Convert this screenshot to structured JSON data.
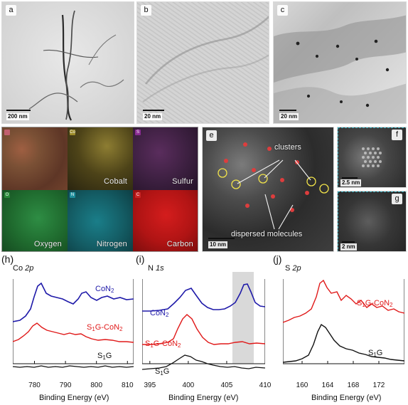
{
  "figure": {
    "panels": {
      "a": {
        "letter": "a",
        "scale_label": "200 nm"
      },
      "b": {
        "letter": "b",
        "scale_label": "20 nm"
      },
      "c": {
        "letter": "c",
        "scale_label": "20 nm"
      },
      "d": {
        "letter": "d",
        "maps": [
          {
            "label": "",
            "badge": "",
            "color": "#7a5035"
          },
          {
            "label": "Cobalt",
            "badge": "Co",
            "color": "#918331"
          },
          {
            "label": "Sulfur",
            "badge": "S",
            "color": "#3b1f3f"
          },
          {
            "label": "Oxygen",
            "badge": "O",
            "color": "#1f6a2e"
          },
          {
            "label": "Nitrogen",
            "badge": "N",
            "color": "#145d65"
          },
          {
            "label": "Carbon",
            "badge": "C",
            "color": "#b01414"
          }
        ]
      },
      "e": {
        "letter": "e",
        "scale_label": "10 nm",
        "annotations": {
          "clusters": "clusters",
          "dispersed": "dispersed molecules"
        }
      },
      "f": {
        "letter": "f",
        "scale_label": "2.5 nm"
      },
      "g": {
        "letter": "g",
        "scale_label": "2 nm"
      }
    }
  },
  "chart_data": [
    {
      "type": "line",
      "panel": "(h)",
      "title_main": "Co",
      "title_sub": "2p",
      "xlabel": "Binding Energy (eV)",
      "xlim": [
        773,
        812
      ],
      "xticks": [
        "780",
        "790",
        "800",
        "810"
      ],
      "series": [
        {
          "name": "CoN",
          "name_sub": "2",
          "color": "#1f1aa9"
        },
        {
          "name": "S",
          "name_sub": "1",
          "name_tail": "G-CoN",
          "name_sub2": "2",
          "color": "#e01919"
        },
        {
          "name": "S",
          "name_sub": "1",
          "name_tail": "G",
          "color": "#111111"
        }
      ]
    },
    {
      "type": "line",
      "panel": "(i)",
      "title_main": "N",
      "title_sub": "1s",
      "xlabel": "Binding Energy (eV)",
      "xlim": [
        394,
        410
      ],
      "xticks": [
        "395",
        "400",
        "405",
        "410"
      ],
      "highlight_range": [
        405.5,
        408.5
      ],
      "series": [
        {
          "name": "CoN",
          "name_sub": "2",
          "color": "#1f1aa9"
        },
        {
          "name": "S",
          "name_sub": "1",
          "name_tail": "G-CoN",
          "name_sub2": "2",
          "color": "#e01919"
        },
        {
          "name": "S",
          "name_sub": "1",
          "name_tail": "G",
          "color": "#111111"
        }
      ]
    },
    {
      "type": "line",
      "panel": "(j)",
      "title_main": "S",
      "title_sub": "2p",
      "xlabel": "Binding Energy (eV)",
      "xlim": [
        157,
        176
      ],
      "xticks": [
        "160",
        "164",
        "168",
        "172"
      ],
      "series": [
        {
          "name": "S",
          "name_sub": "1",
          "name_tail": "G-CoN",
          "name_sub2": "2",
          "color": "#e01919"
        },
        {
          "name": "S",
          "name_sub": "1",
          "name_tail": "G",
          "color": "#111111"
        }
      ]
    }
  ]
}
